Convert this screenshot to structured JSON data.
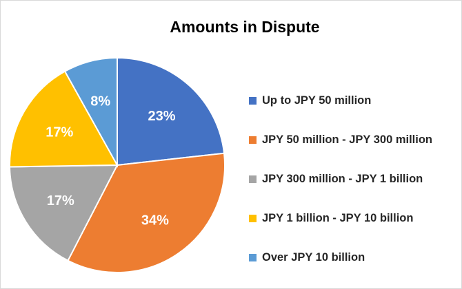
{
  "chart_data": {
    "type": "pie",
    "title": "Amounts in Dispute",
    "categories": [
      "Up to JPY 50 million",
      "JPY 50 million - JPY 300 million",
      "JPY 300 million - JPY 1 billion",
      "JPY 1 billion - JPY 10 billion",
      "Over JPY 10 billion"
    ],
    "values": [
      23,
      34,
      17,
      17,
      8
    ],
    "labels": [
      "23%",
      "34%",
      "17%",
      "17%",
      "8%"
    ],
    "colors": [
      "#4472C4",
      "#ED7D31",
      "#A5A5A5",
      "#FFC000",
      "#5B9BD5"
    ],
    "legend": "right"
  }
}
